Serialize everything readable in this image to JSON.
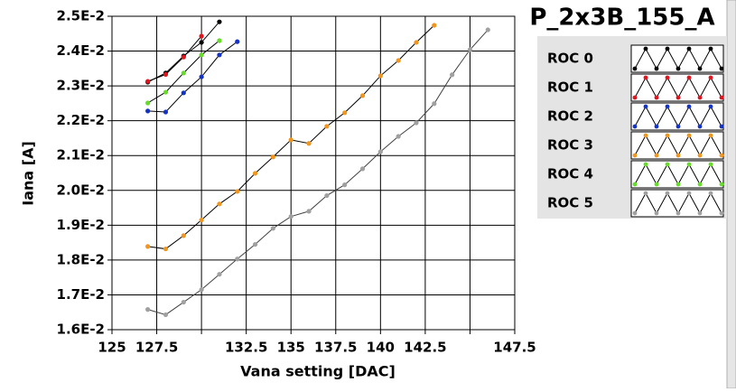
{
  "chart_data": {
    "type": "line",
    "title": "P_2x3B_155_A",
    "xlabel": "Vana setting [DAC]",
    "ylabel": "Iana [A]",
    "xlim": [
      125,
      147.5
    ],
    "ylim": [
      0.016,
      0.025
    ],
    "xticks": [
      125,
      127.5,
      {
        "value": 130,
        "label": null
      },
      132.5,
      135,
      137.5,
      140,
      142.5,
      {
        "value": 145,
        "label": null
      },
      147.5
    ],
    "yticks": [
      {
        "value": 0.016,
        "label": "1.6E-2"
      },
      {
        "value": 0.017,
        "label": "1.7E-2"
      },
      {
        "value": 0.018,
        "label": "1.8E-2"
      },
      {
        "value": 0.019,
        "label": "1.9E-2"
      },
      {
        "value": 0.02,
        "label": "2.0E-2"
      },
      {
        "value": 0.021,
        "label": "2.1E-2"
      },
      {
        "value": 0.022,
        "label": "2.2E-2"
      },
      {
        "value": 0.023,
        "label": "2.3E-2"
      },
      {
        "value": 0.024,
        "label": "2.4E-2"
      },
      {
        "value": 0.025,
        "label": "2.5E-2"
      }
    ],
    "grid": true,
    "series": [
      {
        "name": "ROC 0",
        "color": "#000000",
        "x": [
          127,
          128,
          129,
          130,
          131
        ],
        "values": [
          0.02311,
          0.02337,
          0.02386,
          0.02425,
          0.02484
        ]
      },
      {
        "name": "ROC 1",
        "color": "#e0141e",
        "x": [
          127,
          128,
          129,
          130
        ],
        "values": [
          0.02313,
          0.02333,
          0.02383,
          0.02443
        ]
      },
      {
        "name": "ROC 2",
        "color": "#1432c8",
        "x": [
          127,
          128,
          129,
          130,
          131,
          132
        ],
        "values": [
          0.02228,
          0.02225,
          0.0228,
          0.02326,
          0.02389,
          0.02427
        ]
      },
      {
        "name": "ROC 3",
        "color": "#f0961e",
        "x": [
          127,
          128,
          129,
          130,
          131,
          132,
          133,
          134,
          135,
          136,
          137,
          138,
          139,
          140,
          141,
          142,
          143
        ],
        "values": [
          0.01839,
          0.01832,
          0.0187,
          0.01915,
          0.01961,
          0.01997,
          0.02049,
          0.02096,
          0.02145,
          0.02135,
          0.02184,
          0.02223,
          0.02272,
          0.02329,
          0.02373,
          0.02425,
          0.02474
        ]
      },
      {
        "name": "ROC 4",
        "color": "#64dc28",
        "x": [
          127,
          128,
          129,
          130,
          131
        ],
        "values": [
          0.02251,
          0.02282,
          0.02337,
          0.02389,
          0.0243
        ]
      },
      {
        "name": "ROC 5",
        "color": "#a0a0a0",
        "x": [
          127,
          128,
          129,
          130,
          131,
          132,
          133,
          134,
          135,
          136,
          137,
          138,
          139,
          140,
          141,
          142,
          143,
          144,
          145,
          146
        ],
        "values": [
          0.01658,
          0.01643,
          0.01679,
          0.01715,
          0.01759,
          0.01803,
          0.01845,
          0.01891,
          0.01925,
          0.0194,
          0.01985,
          0.02016,
          0.02062,
          0.02111,
          0.02155,
          0.02194,
          0.02249,
          0.02332,
          0.02404,
          0.02461
        ]
      }
    ]
  }
}
